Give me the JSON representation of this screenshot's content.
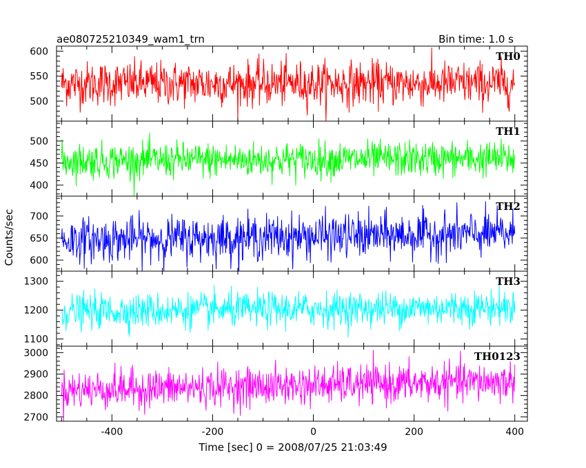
{
  "chart_data": {
    "type": "line",
    "title": "ae080725210349_wam1_trn",
    "subtitle": "Bin time: 1.0 s",
    "xlabel": "Time [sec] 0 = 2008/07/25 21:03:49",
    "ylabel": "Counts/sec",
    "xlim": [
      -510,
      425
    ],
    "x_ticks": [
      -400,
      -200,
      0,
      200,
      400
    ],
    "x_range": [
      -500,
      400
    ],
    "grid": false,
    "panels": [
      {
        "name": "TH0",
        "color": "#ff0000",
        "ylim": [
          460,
          610
        ],
        "y_ticks": [
          500,
          550,
          600
        ],
        "mean": 535,
        "noise": 22,
        "trend": 0
      },
      {
        "name": "TH1",
        "color": "#00ff00",
        "ylim": [
          375,
          545
        ],
        "y_ticks": [
          400,
          450,
          500
        ],
        "mean": 455,
        "noise": 20,
        "trend": 5
      },
      {
        "name": "TH2",
        "color": "#0000ff",
        "ylim": [
          575,
          745
        ],
        "y_ticks": [
          600,
          650,
          700
        ],
        "mean": 645,
        "noise": 25,
        "trend": 15
      },
      {
        "name": "TH3",
        "color": "#00ffff",
        "ylim": [
          1075,
          1335
        ],
        "y_ticks": [
          1100,
          1200,
          1300
        ],
        "mean": 1195,
        "noise": 30,
        "trend": 15
      },
      {
        "name": "TH0123",
        "color": "#ff00ff",
        "ylim": [
          2680,
          3030
        ],
        "y_ticks": [
          2700,
          2800,
          2900,
          3000
        ],
        "mean": 2825,
        "noise": 45,
        "trend": 40
      }
    ]
  }
}
